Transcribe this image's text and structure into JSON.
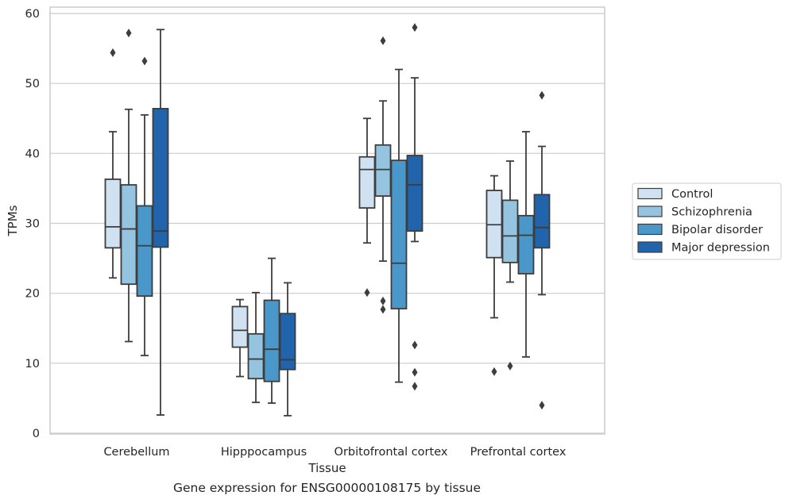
{
  "chart_data": {
    "type": "box",
    "xlabel": "Tissue",
    "ylabel": "TPMs",
    "ylim": [
      0,
      60
    ],
    "yticks": [
      0,
      10,
      20,
      30,
      40,
      50,
      60
    ],
    "grid": "horizontal",
    "legend_position": "right, outside plot",
    "categories": [
      "Cerebellum",
      "Hipppocampus",
      "Orbitofrontal cortex",
      "Prefrontal cortex"
    ],
    "series": [
      {
        "name": "Control",
        "color": "#d0e1f2",
        "boxes": [
          {
            "whisker_low": 22.2,
            "q1": 26.5,
            "median": 29.5,
            "q3": 36.3,
            "whisker_high": 43.1,
            "outliers": [
              54.4
            ]
          },
          {
            "whisker_low": 8.1,
            "q1": 12.3,
            "median": 14.7,
            "q3": 18.1,
            "whisker_high": 19.1,
            "outliers": []
          },
          {
            "whisker_low": 27.2,
            "q1": 32.2,
            "median": 37.7,
            "q3": 39.5,
            "whisker_high": 45.0,
            "outliers": [
              20.1
            ]
          },
          {
            "whisker_low": 16.5,
            "q1": 25.1,
            "median": 29.8,
            "q3": 34.7,
            "whisker_high": 36.8,
            "outliers": [
              8.8
            ]
          }
        ]
      },
      {
        "name": "Schizophrenia",
        "color": "#94c4df",
        "boxes": [
          {
            "whisker_low": 13.1,
            "q1": 21.3,
            "median": 29.2,
            "q3": 35.5,
            "whisker_high": 46.3,
            "outliers": [
              57.2
            ]
          },
          {
            "whisker_low": 4.4,
            "q1": 7.8,
            "median": 10.6,
            "q3": 14.2,
            "whisker_high": 20.1,
            "outliers": []
          },
          {
            "whisker_low": 24.6,
            "q1": 33.9,
            "median": 37.7,
            "q3": 41.2,
            "whisker_high": 47.5,
            "outliers": [
              56.1,
              18.9,
              17.7
            ]
          },
          {
            "whisker_low": 21.6,
            "q1": 24.4,
            "median": 28.2,
            "q3": 33.3,
            "whisker_high": 38.9,
            "outliers": [
              9.6
            ]
          }
        ]
      },
      {
        "name": "Bipolar disorder",
        "color": "#4a98c9",
        "boxes": [
          {
            "whisker_low": 11.1,
            "q1": 19.6,
            "median": 26.8,
            "q3": 32.5,
            "whisker_high": 45.5,
            "outliers": [
              53.2
            ]
          },
          {
            "whisker_low": 4.3,
            "q1": 7.4,
            "median": 12.0,
            "q3": 19.0,
            "whisker_high": 25.0,
            "outliers": []
          },
          {
            "whisker_low": 7.3,
            "q1": 17.8,
            "median": 24.3,
            "q3": 39.0,
            "whisker_high": 52.0,
            "outliers": []
          },
          {
            "whisker_low": 10.9,
            "q1": 22.8,
            "median": 28.3,
            "q3": 31.1,
            "whisker_high": 43.1,
            "outliers": []
          }
        ]
      },
      {
        "name": "Major depression",
        "color": "#2164ab",
        "boxes": [
          {
            "whisker_low": 2.6,
            "q1": 26.6,
            "median": 28.9,
            "q3": 46.4,
            "whisker_high": 57.7,
            "outliers": []
          },
          {
            "whisker_low": 2.5,
            "q1": 9.1,
            "median": 10.5,
            "q3": 17.1,
            "whisker_high": 21.5,
            "outliers": []
          },
          {
            "whisker_low": 27.4,
            "q1": 28.9,
            "median": 35.5,
            "q3": 39.7,
            "whisker_high": 50.8,
            "outliers": [
              58.0,
              12.6,
              8.7,
              6.7
            ]
          },
          {
            "whisker_low": 19.8,
            "q1": 26.5,
            "median": 29.4,
            "q3": 34.1,
            "whisker_high": 41.0,
            "outliers": [
              48.3,
              4.0
            ]
          }
        ]
      }
    ]
  },
  "caption": "Gene expression for ENSG00000108175 by tissue"
}
